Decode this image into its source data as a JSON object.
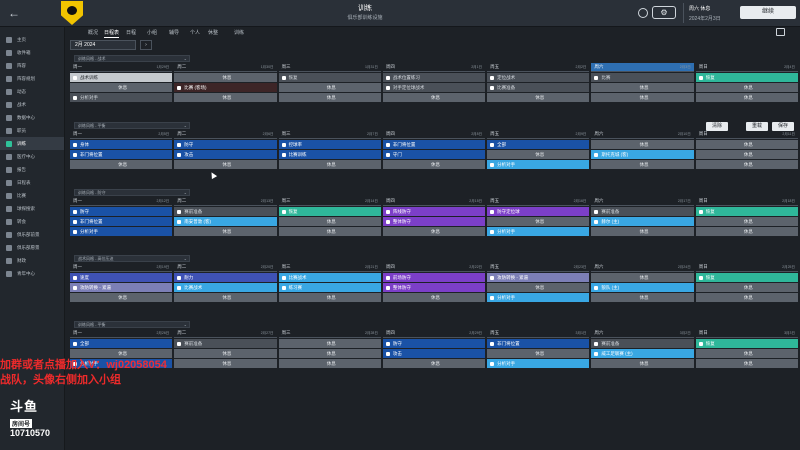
{
  "header": {
    "title": "训练",
    "subtitle": "俱乐部训练设施",
    "date_line1": "周六 休息",
    "date_line2": "2024年2月3日",
    "continue_label": "继续",
    "settings_glyph": "⚙"
  },
  "sidebar": {
    "items": [
      {
        "label": "主页",
        "active": false
      },
      {
        "label": "收件箱",
        "active": false
      },
      {
        "label": "阵容",
        "active": false
      },
      {
        "label": "阵容规划",
        "active": false
      },
      {
        "label": "动态",
        "active": false
      },
      {
        "label": "战术",
        "active": false
      },
      {
        "label": "数据中心",
        "active": false
      },
      {
        "label": "职员",
        "active": false
      },
      {
        "label": "训练",
        "active": true
      },
      {
        "label": "医疗中心",
        "active": false
      },
      {
        "label": "报告",
        "active": false
      },
      {
        "label": "日程表",
        "active": false
      },
      {
        "label": "比赛",
        "active": false
      },
      {
        "label": "球探搜索",
        "active": false
      },
      {
        "label": "转会",
        "active": false
      },
      {
        "label": "俱乐部前景",
        "active": false
      },
      {
        "label": "俱乐部愿景",
        "active": false
      },
      {
        "label": "财政",
        "active": false
      },
      {
        "label": "青年中心",
        "active": false
      }
    ]
  },
  "subnav": {
    "tabs": [
      {
        "label": "概况",
        "active": false
      },
      {
        "label": "日程表",
        "active": true
      },
      {
        "label": "日程",
        "active": false
      },
      {
        "label": "小组",
        "active": false
      },
      {
        "label": "辅导",
        "active": false
      },
      {
        "label": "个人",
        "active": false
      },
      {
        "label": "休整",
        "active": false
      },
      {
        "label": "训练",
        "active": false
      }
    ]
  },
  "month": {
    "value": "2月 2024",
    "prev_glyph": "‹",
    "next_glyph": "›"
  },
  "buttons": {
    "reset": "清除",
    "reload": "重载",
    "save": "保存"
  },
  "weeks": [
    {
      "select": "训练风格 - 战术",
      "days": [
        {
          "name": "周一",
          "num": "1月29日",
          "style": "",
          "slots": [
            {
              "text": "战术训练",
              "color": "c-white"
            },
            {
              "text": "休息",
              "color": "c-rest"
            },
            {
              "text": "分析对手",
              "color": "c-slate"
            }
          ]
        },
        {
          "name": "周二",
          "num": "1月30日",
          "style": "",
          "slots": [
            {
              "text": "休息",
              "color": "c-rest"
            },
            {
              "text": "比赛 (客场)",
              "color": "c-red"
            },
            {
              "text": "休息",
              "color": "c-rest"
            }
          ]
        },
        {
          "name": "周三",
          "num": "1月31日",
          "style": "",
          "slots": [
            {
              "text": "恢复",
              "color": "c-slate"
            },
            {
              "text": "休息",
              "color": "c-rest"
            },
            {
              "text": "休息",
              "color": "c-rest"
            }
          ]
        },
        {
          "name": "周四",
          "num": "2月1日",
          "style": "",
          "slots": [
            {
              "text": "战术位置练习",
              "color": "c-slate"
            },
            {
              "text": "对手定位球战术",
              "color": "c-slate"
            },
            {
              "text": "休息",
              "color": "c-rest"
            }
          ]
        },
        {
          "name": "周五",
          "num": "2月2日",
          "style": "",
          "slots": [
            {
              "text": "定位战术",
              "color": "c-slate"
            },
            {
              "text": "比赛准备",
              "color": "c-slate"
            },
            {
              "text": "休息",
              "color": "c-rest"
            }
          ]
        },
        {
          "name": "周六",
          "num": "2月3日",
          "style": "today",
          "slots": [
            {
              "text": "比赛",
              "color": "c-slate"
            },
            {
              "text": "休息",
              "color": "c-rest"
            },
            {
              "text": "休息",
              "color": "c-rest"
            }
          ]
        },
        {
          "name": "周日",
          "num": "2月4日",
          "style": "",
          "slots": [
            {
              "text": "恢复",
              "color": "c-teal"
            },
            {
              "text": "休息",
              "color": "c-rest"
            },
            {
              "text": "休息",
              "color": "c-rest"
            }
          ]
        }
      ]
    },
    {
      "select": "训练风格 - 平衡",
      "days": [
        {
          "name": "周一",
          "num": "2月5日",
          "style": "",
          "slots": [
            {
              "text": "身体",
              "color": "c-dblue"
            },
            {
              "text": "非门将位置",
              "color": "c-dblue"
            },
            {
              "text": "休息",
              "color": "c-rest"
            }
          ]
        },
        {
          "name": "周二",
          "num": "2月6日",
          "style": "",
          "slots": [
            {
              "text": "防守",
              "color": "c-dblue"
            },
            {
              "text": "攻击",
              "color": "c-dblue"
            },
            {
              "text": "休息",
              "color": "c-rest"
            }
          ]
        },
        {
          "name": "周三",
          "num": "2月7日",
          "style": "",
          "slots": [
            {
              "text": "控球率",
              "color": "c-dblue"
            },
            {
              "text": "比赛训练",
              "color": "c-dblue"
            },
            {
              "text": "休息",
              "color": "c-rest"
            }
          ]
        },
        {
          "name": "周四",
          "num": "2月8日",
          "style": "",
          "slots": [
            {
              "text": "非门将位置",
              "color": "c-dblue"
            },
            {
              "text": "守门",
              "color": "c-dblue"
            },
            {
              "text": "休息",
              "color": "c-rest"
            }
          ]
        },
        {
          "name": "周五",
          "num": "2月9日",
          "style": "",
          "slots": [
            {
              "text": "全部",
              "color": "c-dblue"
            },
            {
              "text": "休息",
              "color": "c-rest"
            },
            {
              "text": "分析对手",
              "color": "c-lblue"
            }
          ]
        },
        {
          "name": "周六",
          "num": "2月10日",
          "style": "",
          "slots": [
            {
              "text": "休息",
              "color": "c-rest"
            },
            {
              "text": "斯托克城 (客)",
              "color": "c-lblue"
            },
            {
              "text": "休息",
              "color": "c-rest"
            }
          ]
        },
        {
          "name": "周日",
          "num": "2月11日",
          "style": "",
          "slots": [
            {
              "text": "休息",
              "color": "c-rest"
            },
            {
              "text": "休息",
              "color": "c-rest"
            },
            {
              "text": "休息",
              "color": "c-rest"
            }
          ]
        }
      ]
    },
    {
      "select": "训练风格 - 防守",
      "days": [
        {
          "name": "周一",
          "num": "2月12日",
          "style": "",
          "slots": [
            {
              "text": "防守",
              "color": "c-dblue"
            },
            {
              "text": "非门将位置",
              "color": "c-dblue"
            },
            {
              "text": "分析对手",
              "color": "c-dblue"
            }
          ]
        },
        {
          "name": "周二",
          "num": "2月13日",
          "style": "",
          "slots": [
            {
              "text": "赛前准备",
              "color": "c-slate"
            },
            {
              "text": "南安普敦 (客)",
              "color": "c-lblue"
            },
            {
              "text": "休息",
              "color": "c-rest"
            }
          ]
        },
        {
          "name": "周三",
          "num": "2月14日",
          "style": "",
          "slots": [
            {
              "text": "恢复",
              "color": "c-teal"
            },
            {
              "text": "休息",
              "color": "c-rest"
            },
            {
              "text": "休息",
              "color": "c-rest"
            }
          ]
        },
        {
          "name": "周四",
          "num": "2月15日",
          "style": "",
          "slots": [
            {
              "text": "阵线防守",
              "color": "c-purple"
            },
            {
              "text": "整体防守",
              "color": "c-purple"
            },
            {
              "text": "休息",
              "color": "c-rest"
            }
          ]
        },
        {
          "name": "周五",
          "num": "2月16日",
          "style": "",
          "slots": [
            {
              "text": "防守定位球",
              "color": "c-purple"
            },
            {
              "text": "休息",
              "color": "c-rest"
            },
            {
              "text": "分析对手",
              "color": "c-lblue"
            }
          ]
        },
        {
          "name": "周六",
          "num": "2月17日",
          "style": "",
          "slots": [
            {
              "text": "赛前准备",
              "color": "c-slate"
            },
            {
              "text": "赫尔 (主)",
              "color": "c-lblue"
            },
            {
              "text": "休息",
              "color": "c-rest"
            }
          ]
        },
        {
          "name": "周日",
          "num": "2月18日",
          "style": "",
          "slots": [
            {
              "text": "恢复",
              "color": "c-teal"
            },
            {
              "text": "休息",
              "color": "c-rest"
            },
            {
              "text": "休息",
              "color": "c-rest"
            }
          ]
        }
      ]
    },
    {
      "select": "战术风格 - 高位压迫",
      "days": [
        {
          "name": "周一",
          "num": "2月19日",
          "style": "",
          "slots": [
            {
              "text": "速度",
              "color": "c-navy"
            },
            {
              "text": "攻防转换 - 紧逼",
              "color": "c-lilac"
            },
            {
              "text": "休息",
              "color": "c-rest"
            }
          ]
        },
        {
          "name": "周二",
          "num": "2月20日",
          "style": "",
          "slots": [
            {
              "text": "耐力",
              "color": "c-navy"
            },
            {
              "text": "比赛战术",
              "color": "c-lblue"
            },
            {
              "text": "休息",
              "color": "c-rest"
            }
          ]
        },
        {
          "name": "周三",
          "num": "2月21日",
          "style": "",
          "slots": [
            {
              "text": "比赛战术",
              "color": "c-lblue"
            },
            {
              "text": "练习赛",
              "color": "c-lblue"
            },
            {
              "text": "休息",
              "color": "c-rest"
            }
          ]
        },
        {
          "name": "周四",
          "num": "2月22日",
          "style": "",
          "slots": [
            {
              "text": "前场防守",
              "color": "c-purple"
            },
            {
              "text": "整体防守",
              "color": "c-purple"
            },
            {
              "text": "休息",
              "color": "c-rest"
            }
          ]
        },
        {
          "name": "周五",
          "num": "2月23日",
          "style": "",
          "slots": [
            {
              "text": "攻防转换 - 紧逼",
              "color": "c-lilac"
            },
            {
              "text": "休息",
              "color": "c-rest"
            },
            {
              "text": "分析对手",
              "color": "c-lblue"
            }
          ]
        },
        {
          "name": "周六",
          "num": "2月24日",
          "style": "",
          "slots": [
            {
              "text": "休息",
              "color": "c-rest"
            },
            {
              "text": "狼队 (主)",
              "color": "c-lblue"
            },
            {
              "text": "休息",
              "color": "c-rest"
            }
          ]
        },
        {
          "name": "周日",
          "num": "2月25日",
          "style": "",
          "slots": [
            {
              "text": "恢复",
              "color": "c-teal"
            },
            {
              "text": "休息",
              "color": "c-rest"
            },
            {
              "text": "休息",
              "color": "c-rest"
            }
          ]
        }
      ]
    },
    {
      "select": "训练风格 - 平衡",
      "days": [
        {
          "name": "周一",
          "num": "2月26日",
          "style": "",
          "slots": [
            {
              "text": "全部",
              "color": "c-dblue"
            },
            {
              "text": "休息",
              "color": "c-rest"
            },
            {
              "text": "分析对手",
              "color": "c-dblue"
            }
          ]
        },
        {
          "name": "周二",
          "num": "2月27日",
          "style": "",
          "slots": [
            {
              "text": "赛前准备",
              "color": "c-slate"
            },
            {
              "text": "休息",
              "color": "c-rest"
            },
            {
              "text": "休息",
              "color": "c-rest"
            }
          ]
        },
        {
          "name": "周三",
          "num": "2月28日",
          "style": "",
          "slots": [
            {
              "text": "休息",
              "color": "c-rest"
            },
            {
              "text": "休息",
              "color": "c-rest"
            },
            {
              "text": "休息",
              "color": "c-rest"
            }
          ]
        },
        {
          "name": "周四",
          "num": "2月29日",
          "style": "",
          "slots": [
            {
              "text": "防守",
              "color": "c-dblue"
            },
            {
              "text": "攻击",
              "color": "c-dblue"
            },
            {
              "text": "休息",
              "color": "c-rest"
            }
          ]
        },
        {
          "name": "周五",
          "num": "3月1日",
          "style": "",
          "slots": [
            {
              "text": "非门将位置",
              "color": "c-dblue"
            },
            {
              "text": "休息",
              "color": "c-rest"
            },
            {
              "text": "分析对手",
              "color": "c-lblue"
            }
          ]
        },
        {
          "name": "周六",
          "num": "3月2日",
          "style": "",
          "slots": [
            {
              "text": "赛前准备",
              "color": "c-slate"
            },
            {
              "text": "威工足联赛 (主)",
              "color": "c-lblue"
            },
            {
              "text": "休息",
              "color": "c-rest"
            }
          ]
        },
        {
          "name": "周日",
          "num": "3月3日",
          "style": "",
          "slots": [
            {
              "text": "恢复",
              "color": "c-teal"
            },
            {
              "text": "休息",
              "color": "c-rest"
            },
            {
              "text": "休息",
              "color": "c-rest"
            }
          ]
        }
      ]
    }
  ],
  "overlay": {
    "line1": "加群或者点播加入V：wj02058054",
    "line2": "战队，头像右侧加入小组",
    "douyu_mark": "斗鱼",
    "douyu_label": "房间号",
    "douyu_id": "10710570"
  }
}
